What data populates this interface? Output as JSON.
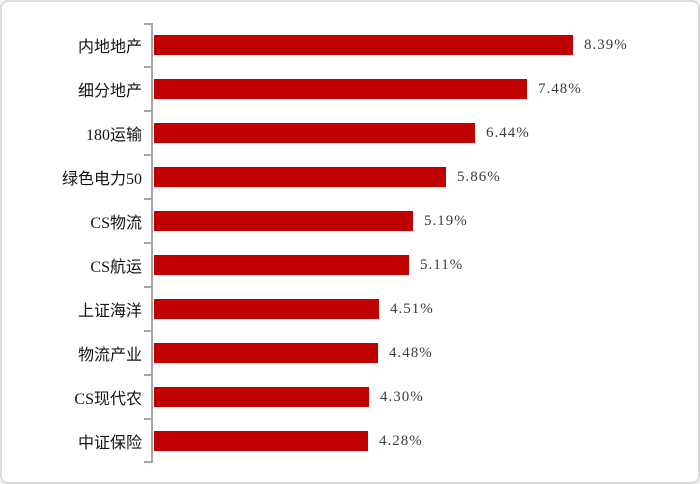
{
  "chart_data": {
    "type": "bar",
    "orientation": "horizontal",
    "title": "",
    "xlabel": "",
    "ylabel": "",
    "categories": [
      "内地地产",
      "细分地产",
      "180运输",
      "绿色电力50",
      "CS物流",
      "CS航运",
      "上证海洋",
      "物流产业",
      "CS现代农",
      "中证保险"
    ],
    "values": [
      8.39,
      7.48,
      6.44,
      5.86,
      5.19,
      5.11,
      4.51,
      4.48,
      4.3,
      4.28
    ],
    "value_labels": [
      "8.39%",
      "7.48%",
      "6.44%",
      "5.86%",
      "5.19%",
      "5.11%",
      "4.51%",
      "4.48%",
      "4.30%",
      "4.28%"
    ],
    "xlim": [
      0,
      9
    ],
    "grid": false,
    "legend": false,
    "bar_color": "#C00000",
    "axis_color": "#A6A6A6",
    "label_color": "#141414",
    "value_color": "#3D3D3D"
  }
}
